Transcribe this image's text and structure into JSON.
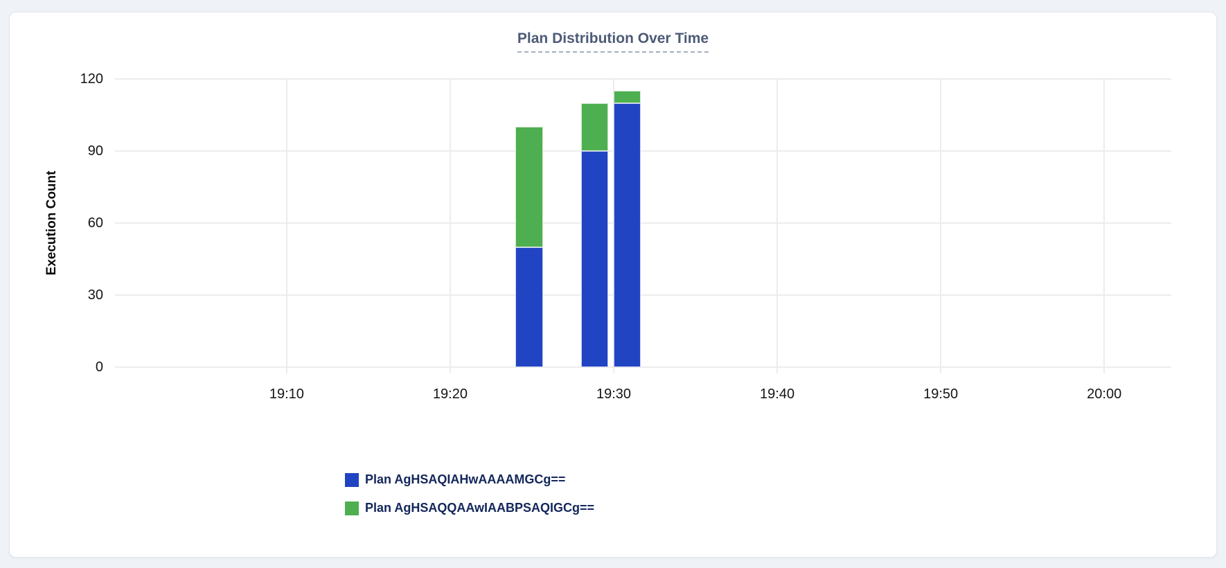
{
  "panel": {
    "title": "Plan Distribution Over Time"
  },
  "chart_data": {
    "type": "bar",
    "stacked": true,
    "title": "Plan Distribution Over Time",
    "xlabel": "",
    "ylabel": "Execution Count",
    "ylim": [
      0,
      120
    ],
    "y_ticks": [
      0,
      30,
      60,
      90,
      120
    ],
    "x_ticks": [
      "19:10",
      "19:20",
      "19:30",
      "19:40",
      "19:50",
      "20:00"
    ],
    "x_axis_minutes_from_19h": [
      -0.5,
      64.1
    ],
    "bar_width_minutes": 1.67,
    "grid": true,
    "legend_position": "bottom-left",
    "categories": [
      "19:24",
      "19:28",
      "19:30"
    ],
    "series": [
      {
        "name": "Plan AgHSAQIAHwAAAAMGCg==",
        "color": "#2144c3",
        "values": [
          50,
          90,
          110
        ]
      },
      {
        "name": "Plan AgHSAQQAAwIAABPSAQIGCg==",
        "color": "#4daf50",
        "values": [
          50,
          20,
          5
        ]
      }
    ],
    "stack_totals": [
      100,
      110,
      115
    ]
  },
  "colors": {
    "page_bg": "#eff2f7",
    "card_bg": "#ffffff",
    "card_border": "#e3e7ee",
    "title": "#4d5b77",
    "grid": "#ececec",
    "tick_label": "#141414",
    "legend_text": "#13265b",
    "series_blue": "#2144c3",
    "series_green": "#4daf50"
  }
}
